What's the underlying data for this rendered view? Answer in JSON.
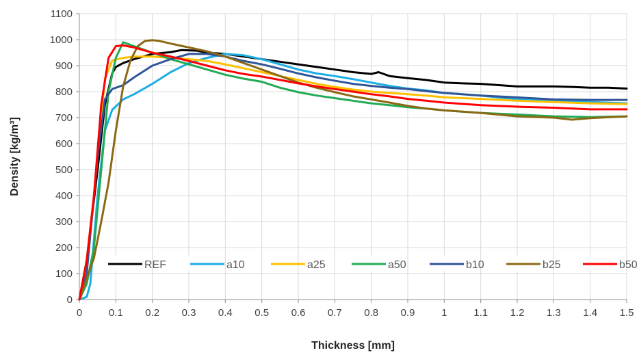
{
  "chart_data": {
    "type": "line",
    "xlabel": "Thickness [mm]",
    "ylabel": "Density [kg/m³]",
    "xlim": [
      0,
      1.5
    ],
    "ylim": [
      0,
      1100
    ],
    "x_ticks": [
      "0",
      "0.1",
      "0.2",
      "0.3",
      "0.4",
      "0.5",
      "0.6",
      "0.7",
      "0.8",
      "0.9",
      "1",
      "1.1",
      "1.2",
      "1.3",
      "1.4",
      "1.5"
    ],
    "y_ticks": [
      "0",
      "100",
      "200",
      "300",
      "400",
      "500",
      "600",
      "700",
      "800",
      "900",
      "1000",
      "1100"
    ],
    "grid": "both",
    "legend_position": "bottom-inside",
    "series": [
      {
        "name": "REF",
        "color": "#000000",
        "points": [
          [
            0,
            0
          ],
          [
            0.02,
            150
          ],
          [
            0.05,
            500
          ],
          [
            0.07,
            750
          ],
          [
            0.09,
            870
          ],
          [
            0.1,
            895
          ],
          [
            0.12,
            910
          ],
          [
            0.15,
            925
          ],
          [
            0.2,
            945
          ],
          [
            0.25,
            952
          ],
          [
            0.28,
            960
          ],
          [
            0.32,
            958
          ],
          [
            0.35,
            950
          ],
          [
            0.4,
            945
          ],
          [
            0.45,
            935
          ],
          [
            0.5,
            925
          ],
          [
            0.55,
            915
          ],
          [
            0.6,
            905
          ],
          [
            0.65,
            895
          ],
          [
            0.7,
            885
          ],
          [
            0.75,
            875
          ],
          [
            0.8,
            868
          ],
          [
            0.82,
            875
          ],
          [
            0.85,
            860
          ],
          [
            0.9,
            852
          ],
          [
            0.95,
            845
          ],
          [
            1.0,
            835
          ],
          [
            1.05,
            832
          ],
          [
            1.1,
            830
          ],
          [
            1.15,
            825
          ],
          [
            1.2,
            820
          ],
          [
            1.25,
            820
          ],
          [
            1.3,
            820
          ],
          [
            1.35,
            818
          ],
          [
            1.4,
            815
          ],
          [
            1.45,
            815
          ],
          [
            1.5,
            812
          ]
        ]
      },
      {
        "name": "a10",
        "color": "#1CADE4",
        "points": [
          [
            0,
            0
          ],
          [
            0.02,
            10
          ],
          [
            0.03,
            60
          ],
          [
            0.05,
            400
          ],
          [
            0.07,
            650
          ],
          [
            0.09,
            730
          ],
          [
            0.12,
            770
          ],
          [
            0.15,
            790
          ],
          [
            0.2,
            830
          ],
          [
            0.25,
            875
          ],
          [
            0.3,
            910
          ],
          [
            0.35,
            930
          ],
          [
            0.4,
            945
          ],
          [
            0.45,
            940
          ],
          [
            0.5,
            925
          ],
          [
            0.55,
            905
          ],
          [
            0.6,
            885
          ],
          [
            0.65,
            870
          ],
          [
            0.7,
            860
          ],
          [
            0.75,
            848
          ],
          [
            0.8,
            835
          ],
          [
            0.85,
            822
          ],
          [
            0.9,
            812
          ],
          [
            0.95,
            805
          ],
          [
            1.0,
            795
          ],
          [
            1.1,
            785
          ],
          [
            1.2,
            770
          ],
          [
            1.3,
            765
          ],
          [
            1.4,
            760
          ],
          [
            1.5,
            755
          ]
        ]
      },
      {
        "name": "a25",
        "color": "#FFC000",
        "points": [
          [
            0,
            0
          ],
          [
            0.02,
            100
          ],
          [
            0.05,
            550
          ],
          [
            0.07,
            850
          ],
          [
            0.09,
            920
          ],
          [
            0.12,
            930
          ],
          [
            0.15,
            935
          ],
          [
            0.2,
            935
          ],
          [
            0.25,
            930
          ],
          [
            0.3,
            925
          ],
          [
            0.35,
            918
          ],
          [
            0.4,
            905
          ],
          [
            0.45,
            890
          ],
          [
            0.5,
            875
          ],
          [
            0.55,
            860
          ],
          [
            0.6,
            845
          ],
          [
            0.65,
            830
          ],
          [
            0.7,
            818
          ],
          [
            0.75,
            808
          ],
          [
            0.8,
            800
          ],
          [
            0.85,
            795
          ],
          [
            0.9,
            790
          ],
          [
            0.95,
            785
          ],
          [
            1.0,
            778
          ],
          [
            1.1,
            772
          ],
          [
            1.2,
            765
          ],
          [
            1.3,
            760
          ],
          [
            1.4,
            755
          ],
          [
            1.5,
            752
          ]
        ]
      },
      {
        "name": "a50",
        "color": "#22AA55",
        "points": [
          [
            0,
            0
          ],
          [
            0.02,
            60
          ],
          [
            0.04,
            200
          ],
          [
            0.06,
            500
          ],
          [
            0.08,
            800
          ],
          [
            0.1,
            930
          ],
          [
            0.12,
            990
          ],
          [
            0.15,
            975
          ],
          [
            0.2,
            950
          ],
          [
            0.25,
            925
          ],
          [
            0.3,
            905
          ],
          [
            0.35,
            885
          ],
          [
            0.4,
            865
          ],
          [
            0.45,
            850
          ],
          [
            0.5,
            838
          ],
          [
            0.55,
            815
          ],
          [
            0.6,
            798
          ],
          [
            0.65,
            785
          ],
          [
            0.7,
            775
          ],
          [
            0.75,
            765
          ],
          [
            0.8,
            755
          ],
          [
            0.85,
            748
          ],
          [
            0.9,
            740
          ],
          [
            0.95,
            735
          ],
          [
            1.0,
            728
          ],
          [
            1.1,
            718
          ],
          [
            1.2,
            712
          ],
          [
            1.3,
            705
          ],
          [
            1.4,
            702
          ],
          [
            1.5,
            705
          ]
        ]
      },
      {
        "name": "b10",
        "color": "#2F5597",
        "points": [
          [
            0,
            0
          ],
          [
            0.02,
            100
          ],
          [
            0.05,
            550
          ],
          [
            0.07,
            770
          ],
          [
            0.09,
            810
          ],
          [
            0.12,
            825
          ],
          [
            0.15,
            855
          ],
          [
            0.2,
            900
          ],
          [
            0.25,
            925
          ],
          [
            0.3,
            945
          ],
          [
            0.35,
            945
          ],
          [
            0.4,
            935
          ],
          [
            0.45,
            918
          ],
          [
            0.5,
            905
          ],
          [
            0.55,
            888
          ],
          [
            0.6,
            870
          ],
          [
            0.65,
            855
          ],
          [
            0.7,
            842
          ],
          [
            0.75,
            830
          ],
          [
            0.8,
            822
          ],
          [
            0.85,
            815
          ],
          [
            0.9,
            810
          ],
          [
            0.95,
            802
          ],
          [
            1.0,
            795
          ],
          [
            1.1,
            785
          ],
          [
            1.2,
            778
          ],
          [
            1.3,
            770
          ],
          [
            1.4,
            768
          ],
          [
            1.5,
            768
          ]
        ]
      },
      {
        "name": "b25",
        "color": "#8B6914",
        "points": [
          [
            0,
            0
          ],
          [
            0.02,
            80
          ],
          [
            0.04,
            160
          ],
          [
            0.06,
            300
          ],
          [
            0.08,
            450
          ],
          [
            0.1,
            650
          ],
          [
            0.12,
            820
          ],
          [
            0.14,
            920
          ],
          [
            0.16,
            975
          ],
          [
            0.18,
            995
          ],
          [
            0.2,
            998
          ],
          [
            0.22,
            995
          ],
          [
            0.25,
            985
          ],
          [
            0.3,
            970
          ],
          [
            0.35,
            955
          ],
          [
            0.4,
            935
          ],
          [
            0.45,
            910
          ],
          [
            0.5,
            885
          ],
          [
            0.55,
            860
          ],
          [
            0.6,
            835
          ],
          [
            0.65,
            815
          ],
          [
            0.7,
            798
          ],
          [
            0.75,
            782
          ],
          [
            0.8,
            770
          ],
          [
            0.85,
            758
          ],
          [
            0.9,
            745
          ],
          [
            0.95,
            735
          ],
          [
            1.0,
            728
          ],
          [
            1.1,
            718
          ],
          [
            1.2,
            705
          ],
          [
            1.3,
            700
          ],
          [
            1.35,
            692
          ],
          [
            1.4,
            698
          ],
          [
            1.5,
            705
          ]
        ]
      },
      {
        "name": "b50",
        "color": "#FF0000",
        "points": [
          [
            0,
            0
          ],
          [
            0.02,
            150
          ],
          [
            0.04,
            400
          ],
          [
            0.06,
            750
          ],
          [
            0.08,
            930
          ],
          [
            0.1,
            975
          ],
          [
            0.12,
            978
          ],
          [
            0.15,
            970
          ],
          [
            0.2,
            950
          ],
          [
            0.25,
            935
          ],
          [
            0.3,
            918
          ],
          [
            0.35,
            900
          ],
          [
            0.4,
            882
          ],
          [
            0.45,
            868
          ],
          [
            0.5,
            858
          ],
          [
            0.55,
            845
          ],
          [
            0.6,
            832
          ],
          [
            0.65,
            820
          ],
          [
            0.7,
            810
          ],
          [
            0.75,
            800
          ],
          [
            0.8,
            790
          ],
          [
            0.85,
            782
          ],
          [
            0.9,
            772
          ],
          [
            0.95,
            765
          ],
          [
            1.0,
            758
          ],
          [
            1.1,
            748
          ],
          [
            1.2,
            742
          ],
          [
            1.3,
            738
          ],
          [
            1.4,
            732
          ],
          [
            1.5,
            732
          ]
        ]
      }
    ]
  }
}
